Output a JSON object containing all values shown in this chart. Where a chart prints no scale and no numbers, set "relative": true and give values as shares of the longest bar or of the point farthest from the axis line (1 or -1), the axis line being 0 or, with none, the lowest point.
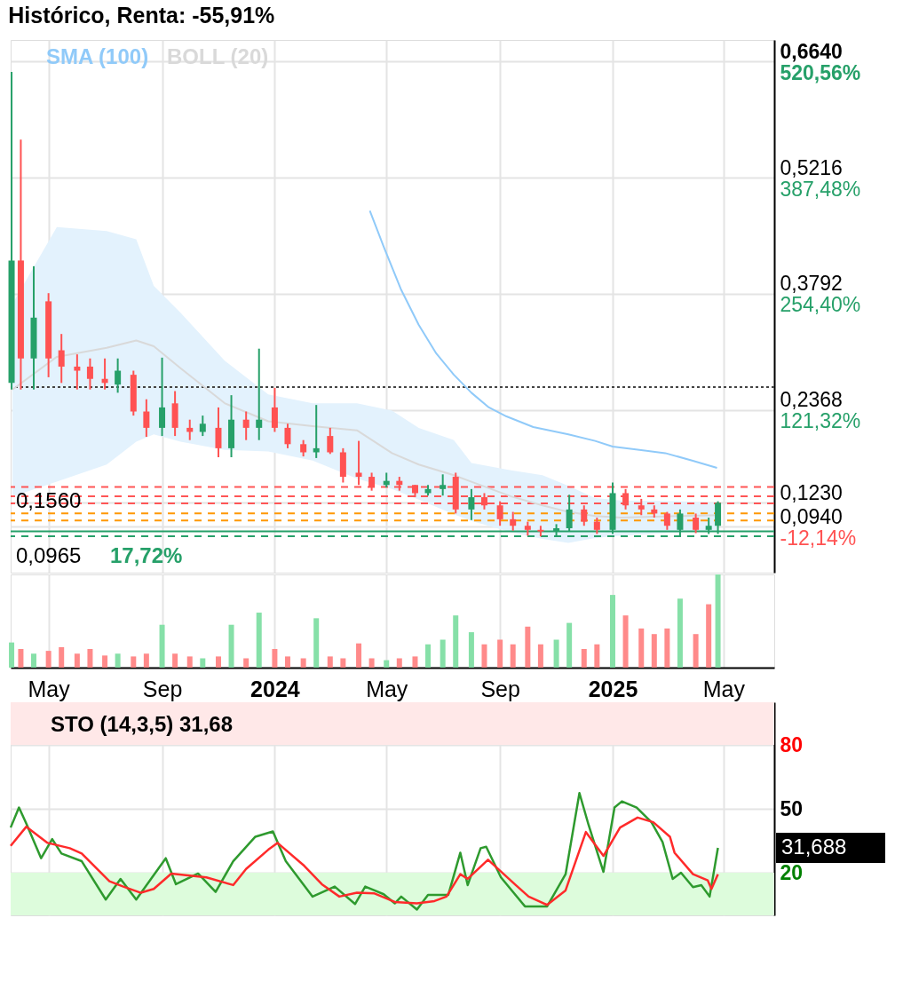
{
  "chart_data": [
    {
      "type": "candlestick",
      "title": "Histórico, Renta: -55,91%",
      "x": [
        "2023-03-22",
        "2023-04-01",
        "2023-04-15",
        "2023-05-01",
        "2023-05-15",
        "2023-06-01",
        "2023-06-15",
        "2023-07-01",
        "2023-07-15",
        "2023-08-01",
        "2023-08-15",
        "2023-09-01",
        "2023-09-15",
        "2023-10-01",
        "2023-10-15",
        "2023-11-01",
        "2023-11-15",
        "2023-12-01",
        "2023-12-15",
        "2024-01-01",
        "2024-01-15",
        "2024-02-01",
        "2024-02-15",
        "2024-03-01",
        "2024-03-15",
        "2024-04-01",
        "2024-04-15",
        "2024-05-01",
        "2024-05-15",
        "2024-06-01",
        "2024-06-15",
        "2024-07-01",
        "2024-07-15",
        "2024-08-01",
        "2024-08-15",
        "2024-09-01",
        "2024-09-15",
        "2024-10-01",
        "2024-10-15",
        "2024-11-01",
        "2024-11-15",
        "2024-12-01",
        "2024-12-15",
        "2025-01-01",
        "2025-01-15",
        "2025-02-01",
        "2025-02-15",
        "2025-03-01",
        "2025-03-15",
        "2025-04-01",
        "2025-04-15",
        "2025-04-25"
      ],
      "ohlc": [
        [
          0.27,
          0.651,
          0.262,
          0.42
        ],
        [
          0.42,
          0.568,
          0.262,
          0.3
        ],
        [
          0.3,
          0.413,
          0.262,
          0.35
        ],
        [
          0.37,
          0.38,
          0.277,
          0.3
        ],
        [
          0.31,
          0.33,
          0.27,
          0.29
        ],
        [
          0.29,
          0.305,
          0.262,
          0.285
        ],
        [
          0.29,
          0.3,
          0.262,
          0.275
        ],
        [
          0.275,
          0.3,
          0.262,
          0.27
        ],
        [
          0.268,
          0.3,
          0.258,
          0.285
        ],
        [
          0.28,
          0.285,
          0.23,
          0.235
        ],
        [
          0.235,
          0.25,
          0.204,
          0.215
        ],
        [
          0.215,
          0.301,
          0.205,
          0.24
        ],
        [
          0.245,
          0.26,
          0.205,
          0.215
        ],
        [
          0.215,
          0.225,
          0.2,
          0.21
        ],
        [
          0.21,
          0.23,
          0.205,
          0.22
        ],
        [
          0.215,
          0.24,
          0.179,
          0.19
        ],
        [
          0.19,
          0.255,
          0.179,
          0.225
        ],
        [
          0.225,
          0.235,
          0.2,
          0.215
        ],
        [
          0.215,
          0.312,
          0.2,
          0.225
        ],
        [
          0.24,
          0.264,
          0.21,
          0.215
        ],
        [
          0.215,
          0.22,
          0.19,
          0.195
        ],
        [
          0.195,
          0.2,
          0.18,
          0.185
        ],
        [
          0.185,
          0.243,
          0.178,
          0.19
        ],
        [
          0.205,
          0.215,
          0.183,
          0.185
        ],
        [
          0.185,
          0.19,
          0.148,
          0.155
        ],
        [
          0.16,
          0.199,
          0.145,
          0.155
        ],
        [
          0.155,
          0.16,
          0.138,
          0.142
        ],
        [
          0.145,
          0.16,
          0.142,
          0.15
        ],
        [
          0.15,
          0.155,
          0.138,
          0.145
        ],
        [
          0.145,
          0.145,
          0.13,
          0.135
        ],
        [
          0.135,
          0.145,
          0.132,
          0.14
        ],
        [
          0.14,
          0.158,
          0.132,
          0.145
        ],
        [
          0.155,
          0.16,
          0.11,
          0.115
        ],
        [
          0.115,
          0.14,
          0.102,
          0.13
        ],
        [
          0.13,
          0.135,
          0.115,
          0.12
        ],
        [
          0.12,
          0.125,
          0.095,
          0.103
        ],
        [
          0.103,
          0.112,
          0.089,
          0.095
        ],
        [
          0.095,
          0.1,
          0.083,
          0.09
        ],
        [
          0.09,
          0.095,
          0.082,
          0.088
        ],
        [
          0.088,
          0.097,
          0.082,
          0.092
        ],
        [
          0.092,
          0.133,
          0.088,
          0.115
        ],
        [
          0.115,
          0.12,
          0.095,
          0.1
        ],
        [
          0.1,
          0.105,
          0.085,
          0.09
        ],
        [
          0.09,
          0.148,
          0.085,
          0.135
        ],
        [
          0.135,
          0.14,
          0.115,
          0.12
        ],
        [
          0.12,
          0.128,
          0.108,
          0.115
        ],
        [
          0.115,
          0.12,
          0.105,
          0.11
        ],
        [
          0.11,
          0.112,
          0.09,
          0.095
        ],
        [
          0.09,
          0.115,
          0.083,
          0.11
        ],
        [
          0.105,
          0.11,
          0.086,
          0.09
        ],
        [
          0.09,
          0.105,
          0.085,
          0.095
        ],
        [
          0.095,
          0.125,
          0.085,
          0.123
        ]
      ],
      "colors": [
        "#26a069",
        "#ff5252",
        "#26a069",
        "#ff5252",
        "#ff5252",
        "#ff5252",
        "#ff5252",
        "#ff5252",
        "#26a069",
        "#ff5252",
        "#ff5252",
        "#26a069",
        "#ff5252",
        "#ff5252",
        "#26a069",
        "#ff5252",
        "#26a069",
        "#ff5252",
        "#26a069",
        "#ff5252",
        "#ff5252",
        "#ff5252",
        "#26a069",
        "#ff5252",
        "#ff5252",
        "#ff5252",
        "#ff5252",
        "#26a069",
        "#ff5252",
        "#ff5252",
        "#26a069",
        "#26a069",
        "#ff5252",
        "#26a069",
        "#ff5252",
        "#ff5252",
        "#ff5252",
        "#ff5252",
        "#ff5252",
        "#26a069",
        "#26a069",
        "#ff5252",
        "#ff5252",
        "#26a069",
        "#ff5252",
        "#ff5252",
        "#ff5252",
        "#ff5252",
        "#26a069",
        "#ff5252",
        "#26a069",
        "#26a069"
      ],
      "series": [
        {
          "name": "SMA (100)",
          "type": "line",
          "color": "#90caf9",
          "x": [
            "2024-04-13",
            "2024-04-28",
            "2024-05-17",
            "2024-06-05",
            "2024-06-24",
            "2024-07-13",
            "2024-08-01",
            "2024-08-20",
            "2024-09-08",
            "2024-10-07",
            "2024-11-14",
            "2024-12-13",
            "2025-01-01",
            "2025-01-30",
            "2025-02-27",
            "2025-03-28",
            "2025-04-24"
          ],
          "values": [
            0.481,
            0.437,
            0.384,
            0.341,
            0.306,
            0.28,
            0.258,
            0.24,
            0.229,
            0.216,
            0.207,
            0.199,
            0.192,
            0.188,
            0.184,
            0.175,
            0.166
          ]
        },
        {
          "name": "BOLL (20)",
          "type": "line",
          "color": "#d9d9d9",
          "x": [
            "2023-03-23",
            "2023-05-10",
            "2023-07-03",
            "2023-08-04",
            "2023-08-23",
            "2023-09-21",
            "2023-11-08",
            "2023-12-25",
            "2024-02-11",
            "2024-03-30",
            "2024-05-07",
            "2024-06-05",
            "2024-07-13",
            "2024-08-01",
            "2024-09-13",
            "2024-10-17",
            "2024-11-14",
            "2024-12-13",
            "2025-01-10",
            "2025-03-18",
            "2025-04-24"
          ],
          "values": [
            0.262,
            0.302,
            0.313,
            0.322,
            0.315,
            0.288,
            0.245,
            0.223,
            0.217,
            0.212,
            0.184,
            0.17,
            0.157,
            0.149,
            0.131,
            0.12,
            0.112,
            0.107,
            0.105,
            0.107,
            0.108
          ],
          "lower": [
            0.131,
            0.149,
            0.17,
            0.198,
            0.207,
            0.198,
            0.188,
            0.186,
            0.175,
            0.153,
            0.14,
            0.127,
            0.109,
            0.101,
            0.087,
            0.079,
            0.074,
            0.08,
            0.083,
            0.087,
            0.089
          ],
          "upper": [
            0.367,
            0.461,
            0.456,
            0.446,
            0.389,
            0.356,
            0.297,
            0.256,
            0.245,
            0.245,
            0.236,
            0.215,
            0.2,
            0.172,
            0.163,
            0.157,
            0.144,
            0.129,
            0.126,
            0.125,
            0.123
          ]
        }
      ],
      "xlim": [
        "2023-03-21",
        "2025-06-25"
      ],
      "xticks": [
        {
          "value": "2023-05-01",
          "label": null
        },
        {
          "value": "2023-09-01",
          "label": null
        },
        {
          "value": "2024-01-01",
          "label": null
        },
        {
          "value": "2024-05-01",
          "label": null
        },
        {
          "value": "2024-09-01",
          "label": null
        },
        {
          "value": "2025-01-01",
          "label": null
        },
        {
          "value": "2025-05-01",
          "label": null
        }
      ],
      "ylim": [
        0.0376,
        0.6902
      ],
      "yticks": [
        {
          "value": 0.094,
          "label": "0,0940"
        },
        {
          "value": 0.123,
          "label": "0,1230"
        },
        {
          "value": 0.2368,
          "label": "0,2368"
        },
        {
          "value": 0.3792,
          "label": "0,3792"
        },
        {
          "value": 0.5216,
          "label": "0,5216"
        },
        {
          "value": 0.664,
          "label": "0,6640"
        }
      ],
      "y2lim": [
        -64.86,
        545.05
      ],
      "y2ticks": [
        {
          "value": -12.14,
          "label": "-12,14%"
        },
        {
          "value": 121.32,
          "label": "121,32%"
        },
        {
          "value": 254.4,
          "label": "254,40%"
        },
        {
          "value": 387.48,
          "label": "387,48%"
        },
        {
          "value": 520.56,
          "label": "520,56%"
        }
      ],
      "ref_lines": [
        {
          "axis": "y",
          "value": 0.2648,
          "color": "#444444",
          "line_style": "dotted"
        },
        {
          "axis": "y",
          "value": 0.1425,
          "color": "#ff5555",
          "line_style": "dashed"
        },
        {
          "axis": "y",
          "value": 0.1311,
          "color": "#ff5555",
          "line_style": "dashed"
        },
        {
          "axis": "y",
          "value": 0.1224,
          "color": "#ff5555",
          "line_style": "dashed"
        },
        {
          "axis": "y",
          "value": 0.1102,
          "color": "#ff9800",
          "line_style": "dashed"
        },
        {
          "axis": "y",
          "value": 0.1014,
          "color": "#ff9800",
          "line_style": "dashed"
        },
        {
          "axis": "y",
          "value": 0.0883,
          "color": "#26a069",
          "line_style": "solid"
        },
        {
          "axis": "y",
          "value": 0.0822,
          "color": "#26a069",
          "line_style": "dashed"
        }
      ],
      "annotations": [
        "0,1560",
        "0,0965",
        "17,72%"
      ],
      "legend": "top left",
      "grid": true,
      "tick_labels": "y"
    },
    {
      "type": "bar",
      "relative": true,
      "x": [
        "2023-03-22",
        "2023-04-01",
        "2023-04-15",
        "2023-05-01",
        "2023-05-15",
        "2023-06-01",
        "2023-06-15",
        "2023-07-01",
        "2023-07-15",
        "2023-08-01",
        "2023-08-15",
        "2023-09-01",
        "2023-09-15",
        "2023-10-01",
        "2023-10-15",
        "2023-11-01",
        "2023-11-15",
        "2023-12-01",
        "2023-12-15",
        "2024-01-01",
        "2024-01-15",
        "2024-02-01",
        "2024-02-15",
        "2024-03-01",
        "2024-03-15",
        "2024-04-01",
        "2024-04-15",
        "2024-05-01",
        "2024-05-15",
        "2024-06-01",
        "2024-06-15",
        "2024-07-01",
        "2024-07-15",
        "2024-08-01",
        "2024-08-15",
        "2024-09-01",
        "2024-09-15",
        "2024-10-01",
        "2024-10-15",
        "2024-11-01",
        "2024-11-15",
        "2024-12-01",
        "2024-12-15",
        "2025-01-01",
        "2025-01-15",
        "2025-02-01",
        "2025-02-15",
        "2025-03-01",
        "2025-03-15",
        "2025-04-01",
        "2025-04-15",
        "2025-04-25"
      ],
      "values": [
        0.27,
        0.2,
        0.15,
        0.18,
        0.22,
        0.15,
        0.2,
        0.13,
        0.15,
        0.12,
        0.15,
        0.46,
        0.15,
        0.12,
        0.1,
        0.12,
        0.46,
        0.1,
        0.59,
        0.2,
        0.12,
        0.1,
        0.53,
        0.12,
        0.1,
        0.26,
        0.1,
        0.08,
        0.1,
        0.12,
        0.25,
        0.3,
        0.56,
        0.38,
        0.25,
        0.3,
        0.25,
        0.44,
        0.25,
        0.3,
        0.48,
        0.2,
        0.25,
        0.78,
        0.56,
        0.42,
        0.36,
        0.42,
        0.74,
        0.36,
        0.68,
        1
      ],
      "colors": [
        "#86e0a8",
        "#ff8a8a",
        "#86e0a8",
        "#ff8a8a",
        "#ff8a8a",
        "#ff8a8a",
        "#ff8a8a",
        "#ff8a8a",
        "#86e0a8",
        "#ff8a8a",
        "#ff8a8a",
        "#86e0a8",
        "#ff8a8a",
        "#ff8a8a",
        "#86e0a8",
        "#ff8a8a",
        "#86e0a8",
        "#ff8a8a",
        "#86e0a8",
        "#ff8a8a",
        "#ff8a8a",
        "#ff8a8a",
        "#86e0a8",
        "#ff8a8a",
        "#ff8a8a",
        "#ff8a8a",
        "#ff8a8a",
        "#86e0a8",
        "#ff8a8a",
        "#ff8a8a",
        "#86e0a8",
        "#86e0a8",
        "#86e0a8",
        "#86e0a8",
        "#ff8a8a",
        "#ff8a8a",
        "#ff8a8a",
        "#ff8a8a",
        "#ff8a8a",
        "#86e0a8",
        "#86e0a8",
        "#ff8a8a",
        "#ff8a8a",
        "#86e0a8",
        "#ff8a8a",
        "#ff8a8a",
        "#ff8a8a",
        "#ff8a8a",
        "#86e0a8",
        "#ff8a8a",
        "#ff8a8a",
        "#86e0a8"
      ],
      "xlim": [
        "2023-03-21",
        "2025-06-25"
      ],
      "xticks": [
        {
          "value": "2023-05-01",
          "label": "May"
        },
        {
          "value": "2023-09-01",
          "label": "Sep"
        },
        {
          "value": "2024-01-01",
          "label": "2024"
        },
        {
          "value": "2024-05-01",
          "label": "May"
        },
        {
          "value": "2024-09-01",
          "label": "Sep"
        },
        {
          "value": "2025-01-01",
          "label": "2025"
        },
        {
          "value": "2025-05-01",
          "label": "May"
        }
      ],
      "grid": "x",
      "tick_labels": "x"
    },
    {
      "type": "line",
      "title": "STO (14,3,5)   31,68",
      "series": [
        {
          "type": "line",
          "color": "#2e9a2e",
          "x": [
            "2023-03-21",
            "2023-03-30",
            "2023-04-07",
            "2023-04-23",
            "2023-05-05",
            "2023-05-15",
            "2023-06-06",
            "2023-07-02",
            "2023-07-18",
            "2023-08-04",
            "2023-09-05",
            "2023-09-16",
            "2023-10-10",
            "2023-10-29",
            "2023-11-17",
            "2023-12-11",
            "2023-12-30",
            "2024-01-13",
            "2024-02-11",
            "2024-03-06",
            "2024-03-28",
            "2024-04-08",
            "2024-04-18",
            "2024-04-28",
            "2024-05-10",
            "2024-05-17",
            "2024-06-03",
            "2024-06-15",
            "2024-07-07",
            "2024-07-20",
            "2024-07-28",
            "2024-08-11",
            "2024-08-17",
            "2024-09-02",
            "2024-09-28",
            "2024-10-22",
            "2024-11-11",
            "2024-11-26",
            "2024-12-06",
            "2024-12-22",
            "2025-01-03",
            "2025-01-11",
            "2025-01-27",
            "2025-02-12",
            "2025-02-24",
            "2025-03-07",
            "2025-03-16",
            "2025-03-29",
            "2025-04-07",
            "2025-04-16",
            "2025-04-25"
          ],
          "values": [
            41.2,
            50.6,
            43,
            26.8,
            35.8,
            29,
            25.4,
            7.4,
            17.1,
            7.4,
            26.8,
            14.6,
            19.6,
            11,
            25.4,
            36.9,
            39.4,
            25.4,
            8.8,
            13.5,
            5.3,
            13.5,
            11.7,
            9.9,
            5.6,
            8.8,
            2.7,
            9.6,
            9.6,
            29.4,
            14.2,
            31.5,
            32.2,
            17.8,
            4.2,
            4.2,
            19.3,
            57.4,
            42.3,
            20.4,
            50.6,
            53.5,
            50.6,
            43.7,
            34.4,
            17.1,
            20,
            13.2,
            14.2,
            8.8,
            31.688
          ]
        },
        {
          "type": "line",
          "color": "#ff2a2a",
          "x": [
            "2023-03-21",
            "2023-04-07",
            "2023-04-30",
            "2023-05-24",
            "2023-06-06",
            "2023-07-06",
            "2023-07-21",
            "2023-08-09",
            "2023-08-23",
            "2023-09-11",
            "2023-10-19",
            "2023-11-17",
            "2023-12-01",
            "2023-12-25",
            "2024-01-04",
            "2024-02-02",
            "2024-02-21",
            "2024-03-11",
            "2024-03-30",
            "2024-04-18",
            "2024-05-10",
            "2024-06-03",
            "2024-06-22",
            "2024-07-05",
            "2024-07-20",
            "2024-07-28",
            "2024-08-19",
            "2024-09-18",
            "2024-10-02",
            "2024-10-22",
            "2024-11-11",
            "2024-12-03",
            "2024-12-22",
            "2025-01-09",
            "2025-01-28",
            "2025-02-14",
            "2025-03-04",
            "2025-03-09",
            "2025-03-29",
            "2025-04-14",
            "2025-04-18",
            "2025-04-25"
          ],
          "values": [
            32.6,
            41.6,
            34,
            31.5,
            29,
            16,
            13.5,
            10.6,
            12.4,
            19.6,
            17.8,
            14.2,
            21.8,
            30.8,
            34,
            23.2,
            14.6,
            8.8,
            10.6,
            10.3,
            6.3,
            5.6,
            6.7,
            8.8,
            19.3,
            17.1,
            26.1,
            14.2,
            8.8,
            4.9,
            11.7,
            39.1,
            27.9,
            41.2,
            45.9,
            43.7,
            36.9,
            29.4,
            19.3,
            16.4,
            12.4,
            19.3
          ]
        }
      ],
      "xlim": [
        "2023-03-21",
        "2025-06-25"
      ],
      "xticks": [
        {
          "value": "2023-05-01",
          "label": null
        },
        {
          "value": "2023-09-01",
          "label": null
        },
        {
          "value": "2024-01-01",
          "label": null
        },
        {
          "value": "2024-05-01",
          "label": null
        },
        {
          "value": "2024-09-01",
          "label": null
        },
        {
          "value": "2025-01-01",
          "label": null
        },
        {
          "value": "2025-05-01",
          "label": null
        }
      ],
      "ylim": [
        0,
        100
      ],
      "yticks": [
        20,
        50,
        80
      ],
      "bands": [
        {
          "axis": "y",
          "from": 80,
          "to": 100,
          "color": "#ffe8e8"
        },
        {
          "axis": "y",
          "from": 0,
          "to": 20,
          "color": "#ddfcdc"
        }
      ],
      "annotations": [
        "31,688"
      ],
      "grid": true,
      "tick_labels": "y"
    }
  ]
}
